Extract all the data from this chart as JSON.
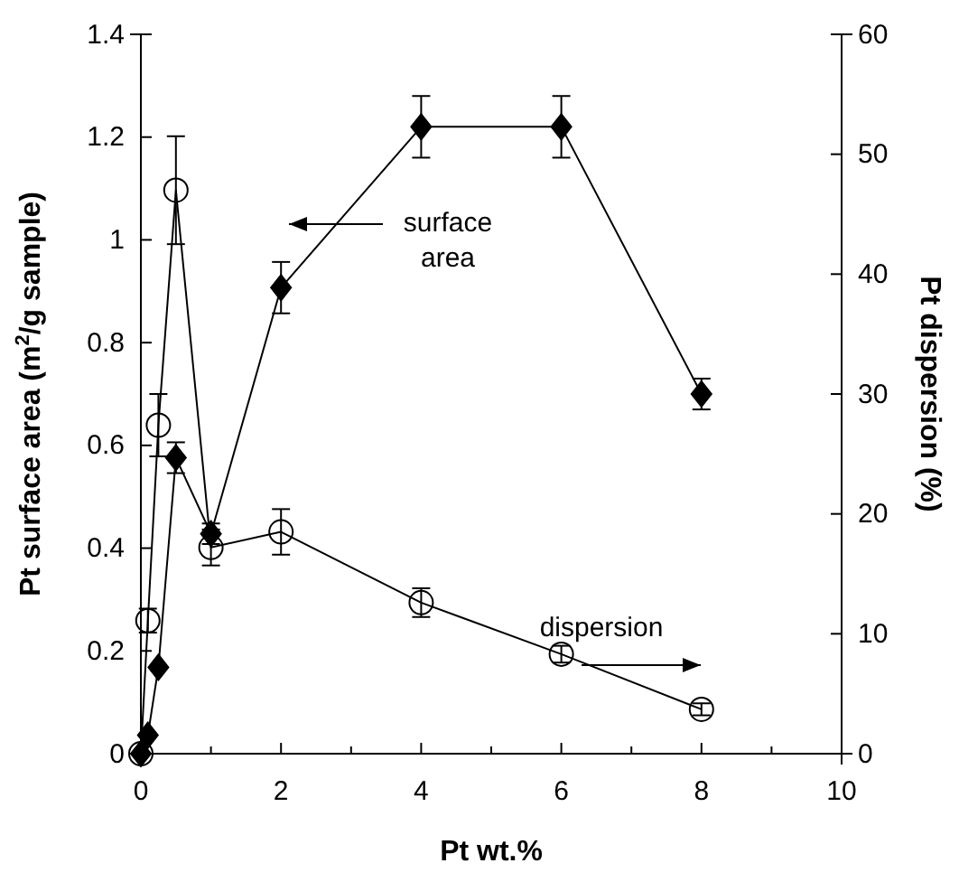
{
  "chart_data": {
    "type": "line",
    "xlabel": "Pt wt.%",
    "ylabel": "Pt surface area (m$^{2}$/g sample)",
    "y2label": "Pt dispersion (%)",
    "xlim": [
      0,
      10
    ],
    "xticks": [
      0,
      {
        "value": 1,
        "label": null
      },
      2,
      {
        "value": 3,
        "label": null
      },
      4,
      {
        "value": 5,
        "label": null
      },
      6,
      {
        "value": 7,
        "label": null
      },
      8,
      {
        "value": 9,
        "label": null
      },
      10
    ],
    "ylim": [
      0,
      1.4
    ],
    "yticks": [
      0,
      0.2,
      0.4,
      0.6,
      0.8,
      1,
      1.2,
      1.4
    ],
    "y2lim": [
      0,
      60
    ],
    "y2ticks": [
      0,
      10,
      20,
      30,
      40,
      50,
      60
    ],
    "grid": false,
    "line_style": "solid",
    "annotations": [
      "surface area",
      "dispersion"
    ],
    "series": [
      {
        "color": "#000000",
        "marker": "diamond",
        "x": [
          0,
          0.1,
          0.25,
          0.5,
          1,
          2,
          4,
          6,
          8
        ],
        "values": [
          0,
          0.036,
          0.168,
          0.576,
          0.428,
          0.907,
          1.22,
          1.22,
          0.7
        ],
        "errors": [
          null,
          null,
          null,
          0.03,
          0.02,
          0.05,
          0.06,
          0.06,
          0.03
        ]
      },
      {
        "color": "#000000",
        "marker": "circle",
        "axis": "y2",
        "x": [
          0,
          0.1,
          0.25,
          0.5,
          1,
          2,
          4,
          6,
          8
        ],
        "values": [
          0,
          11.1,
          27.4,
          47,
          17.2,
          18.5,
          12.6,
          8.3,
          3.7
        ],
        "errors": [
          null,
          1,
          2.6,
          4.5,
          1.5,
          1.9,
          1.2,
          0.7,
          0.5
        ]
      }
    ]
  }
}
